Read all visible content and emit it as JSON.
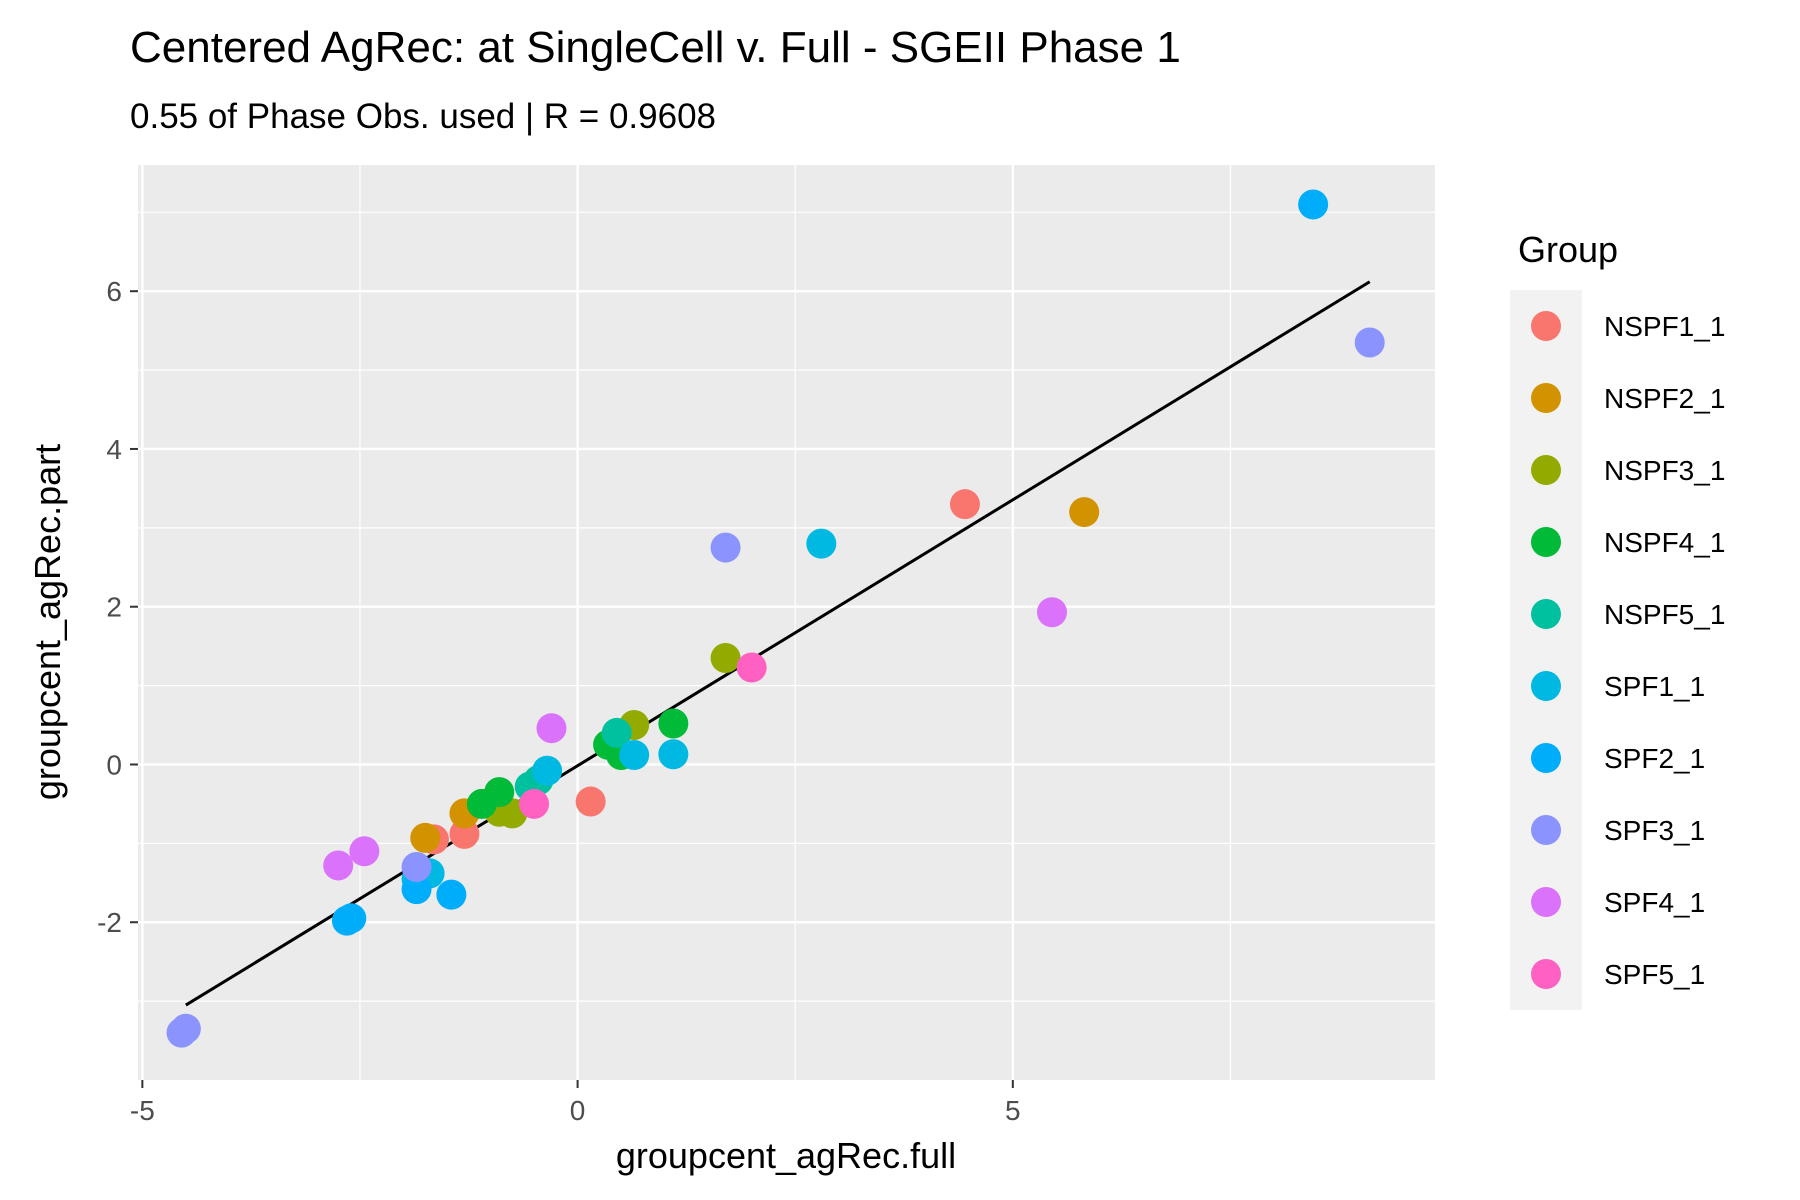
{
  "chart_data": {
    "type": "scatter",
    "title": "Centered AgRec: at SingleCell v. Full - SGEII Phase 1",
    "subtitle": "0.55 of Phase Obs. used | R = 0.9608",
    "xlabel": "groupcent_agRec.full",
    "ylabel": "groupcent_agRec.part",
    "xlim": [
      -5.05,
      9.85
    ],
    "ylim": [
      -4.0,
      7.6
    ],
    "x_ticks": [
      -5,
      0,
      5
    ],
    "y_ticks": [
      -2,
      0,
      2,
      4,
      6
    ],
    "grid": true,
    "legend_placement": "right",
    "legend_title": "Group",
    "fit_line": {
      "x": [
        -4.5,
        9.1
      ],
      "y": [
        -3.05,
        6.12
      ],
      "color": "#000000"
    },
    "series": [
      {
        "name": "NSPF1_1",
        "color": "#F8766D",
        "points": [
          [
            4.45,
            3.3
          ],
          [
            0.15,
            -0.47
          ],
          [
            -1.3,
            -0.88
          ],
          [
            -1.65,
            -0.95
          ]
        ]
      },
      {
        "name": "NSPF2_1",
        "color": "#D39200",
        "points": [
          [
            5.82,
            3.2
          ],
          [
            -1.3,
            -0.62
          ],
          [
            -1.75,
            -0.93
          ]
        ]
      },
      {
        "name": "NSPF3_1",
        "color": "#93AA00",
        "points": [
          [
            1.7,
            1.35
          ],
          [
            0.65,
            0.5
          ],
          [
            -0.75,
            -0.62
          ],
          [
            -0.9,
            -0.6
          ]
        ]
      },
      {
        "name": "NSPF4_1",
        "color": "#00BA38",
        "points": [
          [
            1.1,
            0.52
          ],
          [
            0.35,
            0.25
          ],
          [
            0.5,
            0.12
          ],
          [
            -0.9,
            -0.35
          ],
          [
            -1.1,
            -0.5
          ]
        ]
      },
      {
        "name": "NSPF5_1",
        "color": "#00C19F",
        "points": [
          [
            0.45,
            0.4
          ],
          [
            -0.55,
            -0.28
          ],
          [
            -0.45,
            -0.2
          ]
        ]
      },
      {
        "name": "SPF1_1",
        "color": "#00B9E3",
        "points": [
          [
            2.8,
            2.8
          ],
          [
            1.1,
            0.13
          ],
          [
            0.65,
            0.12
          ],
          [
            -0.35,
            -0.08
          ],
          [
            -1.7,
            -1.38
          ],
          [
            -1.85,
            -1.45
          ]
        ]
      },
      {
        "name": "SPF2_1",
        "color": "#00ADFA",
        "points": [
          [
            8.45,
            7.1
          ],
          [
            -2.6,
            -1.95
          ],
          [
            -2.65,
            -1.98
          ],
          [
            -1.45,
            -1.65
          ],
          [
            -1.85,
            -1.58
          ]
        ]
      },
      {
        "name": "SPF3_1",
        "color": "#8B93FF",
        "points": [
          [
            9.1,
            5.35
          ],
          [
            1.7,
            2.75
          ],
          [
            -4.5,
            -3.35
          ],
          [
            -4.55,
            -3.4
          ],
          [
            -1.85,
            -1.3
          ]
        ]
      },
      {
        "name": "SPF4_1",
        "color": "#DB72FB",
        "points": [
          [
            5.45,
            1.93
          ],
          [
            -0.3,
            0.46
          ],
          [
            -2.75,
            -1.28
          ],
          [
            -2.45,
            -1.1
          ]
        ]
      },
      {
        "name": "SPF5_1",
        "color": "#FF61C3",
        "points": [
          [
            2.0,
            1.23
          ],
          [
            -0.5,
            -0.5
          ]
        ]
      }
    ]
  }
}
